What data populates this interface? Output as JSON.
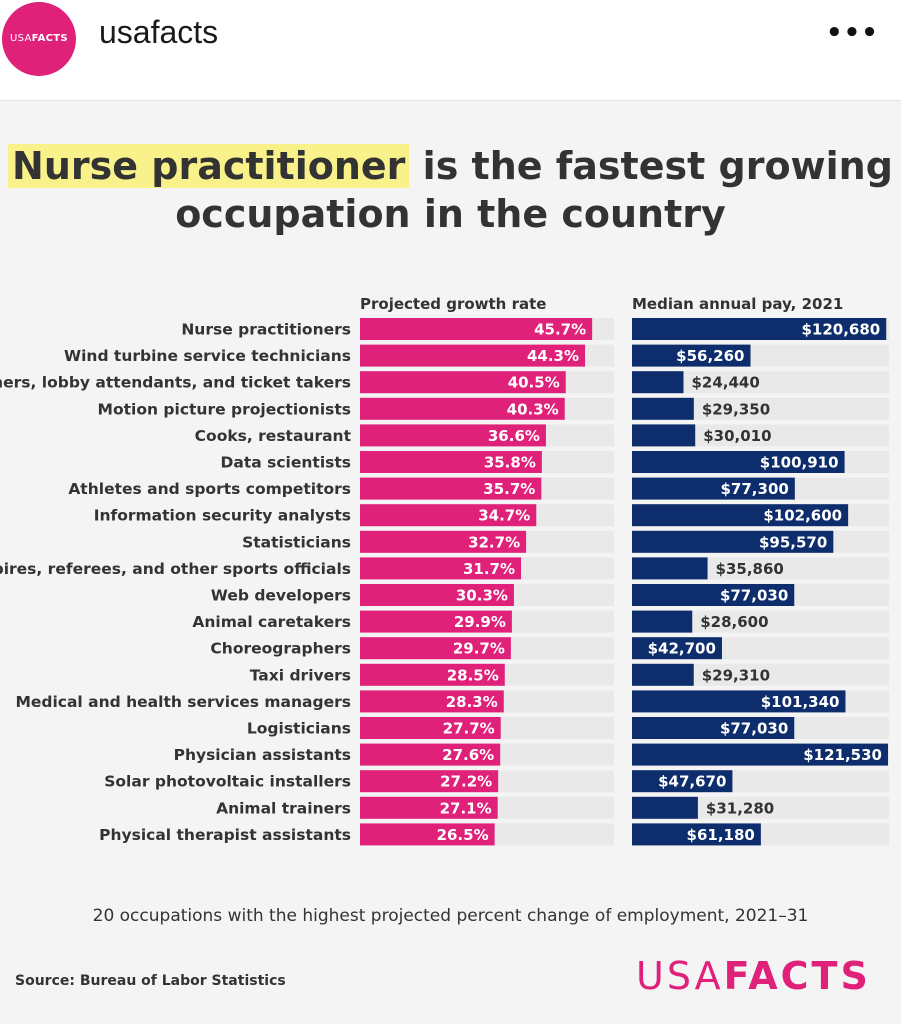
{
  "post": {
    "username": "usafacts",
    "avatar_text_a": "USA",
    "avatar_text_b": "FACTS",
    "more_icon": "ellipsis-icon"
  },
  "figure": {
    "title_highlight": "Nurse practitioner",
    "title_rest_1": " is the fastest growing",
    "title_line_2": "occupation in the country",
    "caption": "20 occupations with the highest projected percent change of employment, 2021–31",
    "source": "Source: Bureau of Labor Statistics",
    "logo_a": "USA",
    "logo_b": "FACTS"
  },
  "colors": {
    "accent": "#e0217a",
    "navy": "#0d2d6c",
    "track": "#e9e9e9",
    "highlight": "#f9f28b"
  },
  "chart_data": {
    "type": "bar",
    "categories": [
      "Nurse practitioners",
      "Wind turbine service technicians",
      "Ushers, lobby attendants, and ticket takers",
      "Motion picture projectionists",
      "Cooks, restaurant",
      "Data scientists",
      "Athletes and sports competitors",
      "Information security analysts",
      "Statisticians",
      "Umpires, referees, and other sports officials",
      "Web developers",
      "Animal caretakers",
      "Choreographers",
      "Taxi drivers",
      "Medical and health services managers",
      "Logisticians",
      "Physician assistants",
      "Solar photovoltaic installers",
      "Animal trainers",
      "Physical therapist assistants"
    ],
    "series": [
      {
        "name": "Projected growth rate",
        "values": [
          45.7,
          44.3,
          40.5,
          40.3,
          36.6,
          35.8,
          35.7,
          34.7,
          32.7,
          31.7,
          30.3,
          29.9,
          29.7,
          28.5,
          28.3,
          27.7,
          27.6,
          27.2,
          27.1,
          26.5
        ],
        "labels": [
          "45.7%",
          "44.3%",
          "40.5%",
          "40.3%",
          "36.6%",
          "35.8%",
          "35.7%",
          "34.7%",
          "32.7%",
          "31.7%",
          "30.3%",
          "29.9%",
          "29.7%",
          "28.5%",
          "28.3%",
          "27.7%",
          "27.6%",
          "27.2%",
          "27.1%",
          "26.5%"
        ],
        "max": 50,
        "color": "#e0217a"
      },
      {
        "name": "Median annual pay, 2021",
        "values": [
          120680,
          56260,
          24440,
          29350,
          30010,
          100910,
          77300,
          102600,
          95570,
          35860,
          77030,
          28600,
          42700,
          29310,
          101340,
          77030,
          121530,
          47670,
          31280,
          61180
        ],
        "labels": [
          "$120,680",
          "$56,260",
          "$24,440",
          "$29,350",
          "$30,010",
          "$100,910",
          "$77,300",
          "$102,600",
          "$95,570",
          "$35,860",
          "$77,030",
          "$28,600",
          "$42,700",
          "$29,310",
          "$101,340",
          "$77,030",
          "$121,530",
          "$47,670",
          "$31,280",
          "$61,180"
        ],
        "max": 122000,
        "color": "#0d2d6c"
      }
    ]
  }
}
